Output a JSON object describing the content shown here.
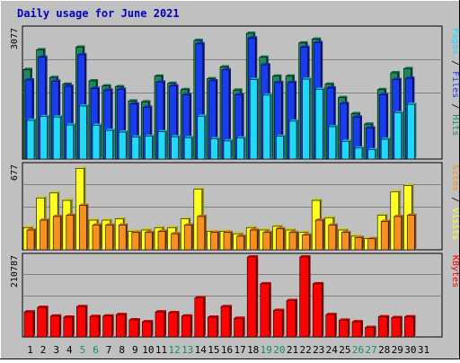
{
  "title": "Daily usage for June 2021",
  "colors": {
    "background": "#c0c0c0",
    "title": "#0000c0",
    "hits": "#1a8c5c",
    "files": "#1a3cf0",
    "pages": "#20d8f8",
    "visits": "#ffff20",
    "sites": "#f89020",
    "kbytes": "#ff0000",
    "weekend_label": "#1a8c5c",
    "weekday_label": "#000000"
  },
  "x_labels": [
    "1",
    "2",
    "3",
    "4",
    "5",
    "6",
    "7",
    "8",
    "9",
    "10",
    "11",
    "12",
    "13",
    "14",
    "15",
    "16",
    "17",
    "18",
    "19",
    "20",
    "21",
    "22",
    "23",
    "24",
    "25",
    "26",
    "27",
    "28",
    "29",
    "30",
    "31"
  ],
  "weekend_days": [
    5,
    6,
    12,
    13,
    19,
    20,
    26,
    27
  ],
  "chart_data": [
    {
      "type": "bar",
      "panel": "hits-files-pages",
      "ymax_label": "3077",
      "ylim": [
        0,
        3077
      ],
      "legend": [
        {
          "key": "hits",
          "label": "Hits"
        },
        {
          "key": "files",
          "label": "Files"
        },
        {
          "key": "pages",
          "label": "Pages"
        }
      ],
      "legend_separator": " / ",
      "categories": [
        "1",
        "2",
        "3",
        "4",
        "5",
        "6",
        "7",
        "8",
        "9",
        "10",
        "11",
        "12",
        "13",
        "14",
        "15",
        "16",
        "17",
        "18",
        "19",
        "20",
        "21",
        "22",
        "23",
        "24",
        "25",
        "26",
        "27",
        "28",
        "29",
        "30"
      ],
      "series": [
        {
          "name": "Hits",
          "key": "hits",
          "values": [
            2130,
            2600,
            1940,
            1780,
            2660,
            1860,
            1740,
            1720,
            1380,
            1360,
            1970,
            1800,
            1650,
            2820,
            1910,
            2190,
            1640,
            2990,
            2420,
            1970,
            1970,
            2760,
            2850,
            1780,
            1460,
            1080,
            830,
            1650,
            2050,
            2150
          ]
        },
        {
          "name": "Files",
          "key": "files",
          "values": [
            1880,
            2420,
            1850,
            1730,
            2480,
            1680,
            1640,
            1660,
            1310,
            1230,
            1830,
            1740,
            1530,
            2740,
            1860,
            2120,
            1530,
            2880,
            2240,
            1820,
            1820,
            2660,
            2770,
            1690,
            1320,
            1000,
            740,
            1530,
            1890,
            1920
          ]
        },
        {
          "name": "Pages",
          "key": "pages",
          "values": [
            920,
            1010,
            1000,
            810,
            1260,
            800,
            680,
            640,
            520,
            540,
            650,
            530,
            510,
            1020,
            480,
            430,
            500,
            1890,
            1520,
            540,
            900,
            1900,
            1660,
            770,
            420,
            260,
            220,
            470,
            1100,
            1300
          ]
        }
      ]
    },
    {
      "type": "bar",
      "panel": "visits-sites",
      "ymax_label": "677",
      "ylim": [
        0,
        677
      ],
      "legend": [
        {
          "key": "visits",
          "label": "Visits"
        },
        {
          "key": "sites",
          "label": "Sites"
        }
      ],
      "legend_separator": " / ",
      "categories": [
        "1",
        "2",
        "3",
        "4",
        "5",
        "6",
        "7",
        "8",
        "9",
        "10",
        "11",
        "12",
        "13",
        "14",
        "15",
        "16",
        "17",
        "18",
        "19",
        "20",
        "21",
        "22",
        "23",
        "24",
        "25",
        "26",
        "27",
        "28",
        "29",
        "30"
      ],
      "series": [
        {
          "name": "Visits",
          "key": "visits",
          "values": [
            180,
            420,
            460,
            400,
            660,
            240,
            240,
            250,
            150,
            160,
            180,
            180,
            250,
            490,
            150,
            150,
            130,
            180,
            160,
            190,
            160,
            140,
            400,
            260,
            160,
            110,
            90,
            280,
            470,
            520
          ]
        },
        {
          "name": "Sites",
          "key": "sites",
          "values": [
            160,
            240,
            270,
            280,
            360,
            200,
            200,
            200,
            140,
            140,
            150,
            130,
            200,
            270,
            140,
            140,
            110,
            160,
            140,
            170,
            140,
            120,
            240,
            200,
            140,
            100,
            90,
            230,
            270,
            280
          ]
        }
      ]
    },
    {
      "type": "bar",
      "panel": "kbytes",
      "ymax_label": "210787",
      "ylim": [
        0,
        210787
      ],
      "legend": [
        {
          "key": "kbytes",
          "label": "KBytes"
        }
      ],
      "legend_separator": "",
      "categories": [
        "1",
        "2",
        "3",
        "4",
        "5",
        "6",
        "7",
        "8",
        "9",
        "10",
        "11",
        "12",
        "13",
        "14",
        "15",
        "16",
        "17",
        "18",
        "19",
        "20",
        "21",
        "22",
        "23",
        "24",
        "25",
        "26",
        "27",
        "28",
        "29",
        "30"
      ],
      "series": [
        {
          "name": "KBytes",
          "key": "kbytes",
          "values": [
            66000,
            78000,
            55000,
            52000,
            80000,
            54000,
            55000,
            59000,
            45000,
            40000,
            66000,
            64000,
            55000,
            103000,
            52000,
            80000,
            49000,
            210787,
            140000,
            70000,
            96000,
            210787,
            140000,
            59000,
            44000,
            40000,
            25000,
            53000,
            51000,
            53000
          ]
        }
      ]
    }
  ]
}
